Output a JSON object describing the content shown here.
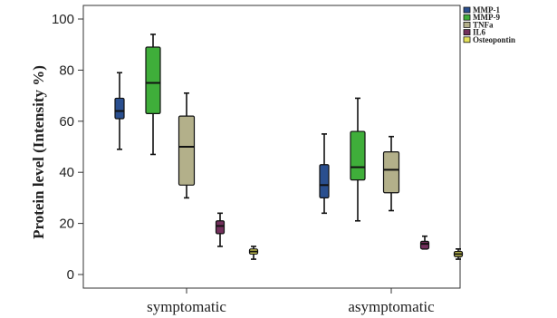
{
  "chart_data": {
    "type": "boxplot",
    "ylabel": "Protein level (Intensity %)",
    "categories": [
      "symptomatic",
      "asymptomatic"
    ],
    "ylim": [
      -5,
      105
    ],
    "yticks": [
      0,
      20,
      40,
      60,
      80,
      100
    ],
    "legend_position": "top-right",
    "grid": false,
    "series": [
      {
        "name": "MMP-1",
        "color": "#2a4f8f",
        "boxes": [
          {
            "min": 49,
            "q1": 61,
            "median": 64,
            "q3": 69,
            "max": 79
          },
          {
            "min": 24,
            "q1": 30,
            "median": 35,
            "q3": 43,
            "max": 55
          }
        ]
      },
      {
        "name": "MMP-9",
        "color": "#3fae3a",
        "boxes": [
          {
            "min": 47,
            "q1": 63,
            "median": 75,
            "q3": 89,
            "max": 94
          },
          {
            "min": 21,
            "q1": 37,
            "median": 42,
            "q3": 56,
            "max": 69
          }
        ]
      },
      {
        "name": "TNFa",
        "color": "#b3b08a",
        "boxes": [
          {
            "min": 30,
            "q1": 35,
            "median": 50,
            "q3": 62,
            "max": 71
          },
          {
            "min": 25,
            "q1": 32,
            "median": 41,
            "q3": 48,
            "max": 54
          }
        ]
      },
      {
        "name": "IL6",
        "color": "#73305c",
        "boxes": [
          {
            "min": 11,
            "q1": 16,
            "median": 19,
            "q3": 21,
            "max": 24
          },
          {
            "min": 10,
            "q1": 10,
            "median": 12,
            "q3": 13,
            "max": 15
          }
        ]
      },
      {
        "name": "Osteopontin",
        "color": "#e4e15a",
        "boxes": [
          {
            "min": 6,
            "q1": 8,
            "median": 9,
            "q3": 10,
            "max": 11
          },
          {
            "min": 6,
            "q1": 7,
            "median": 8,
            "q3": 9,
            "max": 10
          }
        ]
      }
    ]
  }
}
